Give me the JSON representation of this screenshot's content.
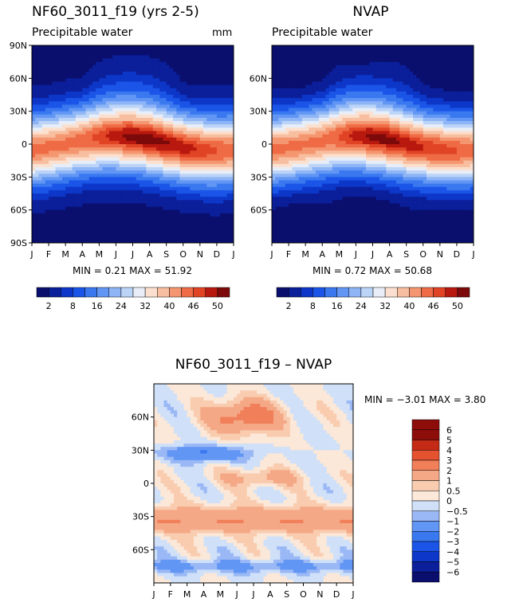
{
  "panels": [
    {
      "id": "model",
      "title": "NF60_3011_f19 (yrs 2-5)",
      "subtitle": "Precipitable water",
      "units": "mm",
      "stats": "MIN =    0.21  MAX =   51.92",
      "field": "model"
    },
    {
      "id": "obs",
      "title": "NVAP",
      "subtitle": "Precipitable water",
      "units": "",
      "stats": "MIN =    0.72  MAX =   50.68",
      "field": "obs"
    },
    {
      "id": "diff",
      "title": "NF60_3011_f19 – NVAP",
      "subtitle": "",
      "units": "",
      "stats": "MIN =  −3.01  MAX =    3.80",
      "field": "diff"
    }
  ],
  "chart_data": [
    {
      "type": "heatmap",
      "title": "NF60_3011_f19 (yrs 2-5)",
      "subtitle": "Precipitable water",
      "units": "mm",
      "x": [
        "J",
        "F",
        "M",
        "A",
        "M",
        "J",
        "J",
        "A",
        "S",
        "O",
        "N",
        "D",
        "J"
      ],
      "y_ticks": [
        "90N",
        "60N",
        "30N",
        "0",
        "30S",
        "60S",
        "90S"
      ],
      "ylim": [
        -90,
        90
      ],
      "min": 0.21,
      "max": 51.92,
      "colorbar_labels": [
        "2",
        "8",
        "16",
        "24",
        "32",
        "40",
        "46",
        "50"
      ]
    },
    {
      "type": "heatmap",
      "title": "NVAP",
      "subtitle": "Precipitable water",
      "x": [
        "J",
        "F",
        "M",
        "A",
        "M",
        "J",
        "J",
        "A",
        "S",
        "O",
        "N",
        "D",
        "J"
      ],
      "y_ticks": [
        "60N",
        "30N",
        "0",
        "30S",
        "60S"
      ],
      "ylim": [
        -90,
        90
      ],
      "min": 0.72,
      "max": 50.68,
      "colorbar_labels": [
        "2",
        "8",
        "16",
        "24",
        "32",
        "40",
        "46",
        "50"
      ]
    },
    {
      "type": "heatmap",
      "title": "NF60_3011_f19 – NVAP",
      "x": [
        "J",
        "F",
        "M",
        "A",
        "M",
        "J",
        "J",
        "A",
        "S",
        "O",
        "N",
        "D",
        "J"
      ],
      "y_ticks": [
        "60N",
        "30N",
        "0",
        "30S",
        "60S"
      ],
      "ylim": [
        -90,
        90
      ],
      "min": -3.01,
      "max": 3.8,
      "colorbar_labels": [
        "6",
        "5",
        "4",
        "3",
        "2",
        "1",
        "0.5",
        "0",
        "−0.5",
        "−1",
        "−2",
        "−3",
        "−4",
        "−5",
        "−6"
      ]
    }
  ],
  "colors": {
    "seq": [
      "#0a0f6e",
      "#0b1f9a",
      "#0d37c8",
      "#1a55e8",
      "#3a78f0",
      "#6296f4",
      "#8eb5f6",
      "#bcd4f7",
      "#e8eef8",
      "#fbe0cf",
      "#f8bea0",
      "#f49770",
      "#ef6b45",
      "#e04424",
      "#b8190f",
      "#7c0a0a"
    ],
    "div": [
      "#0a0f6e",
      "#0b1f9a",
      "#0d37c8",
      "#1a55e8",
      "#3a78f0",
      "#6296f4",
      "#9ab8f5",
      "#cfe0f8",
      "#fbe8d8",
      "#f9ccb0",
      "#f5a886",
      "#f07f5a",
      "#e5522f",
      "#c42a15",
      "#8c0d0a"
    ]
  }
}
